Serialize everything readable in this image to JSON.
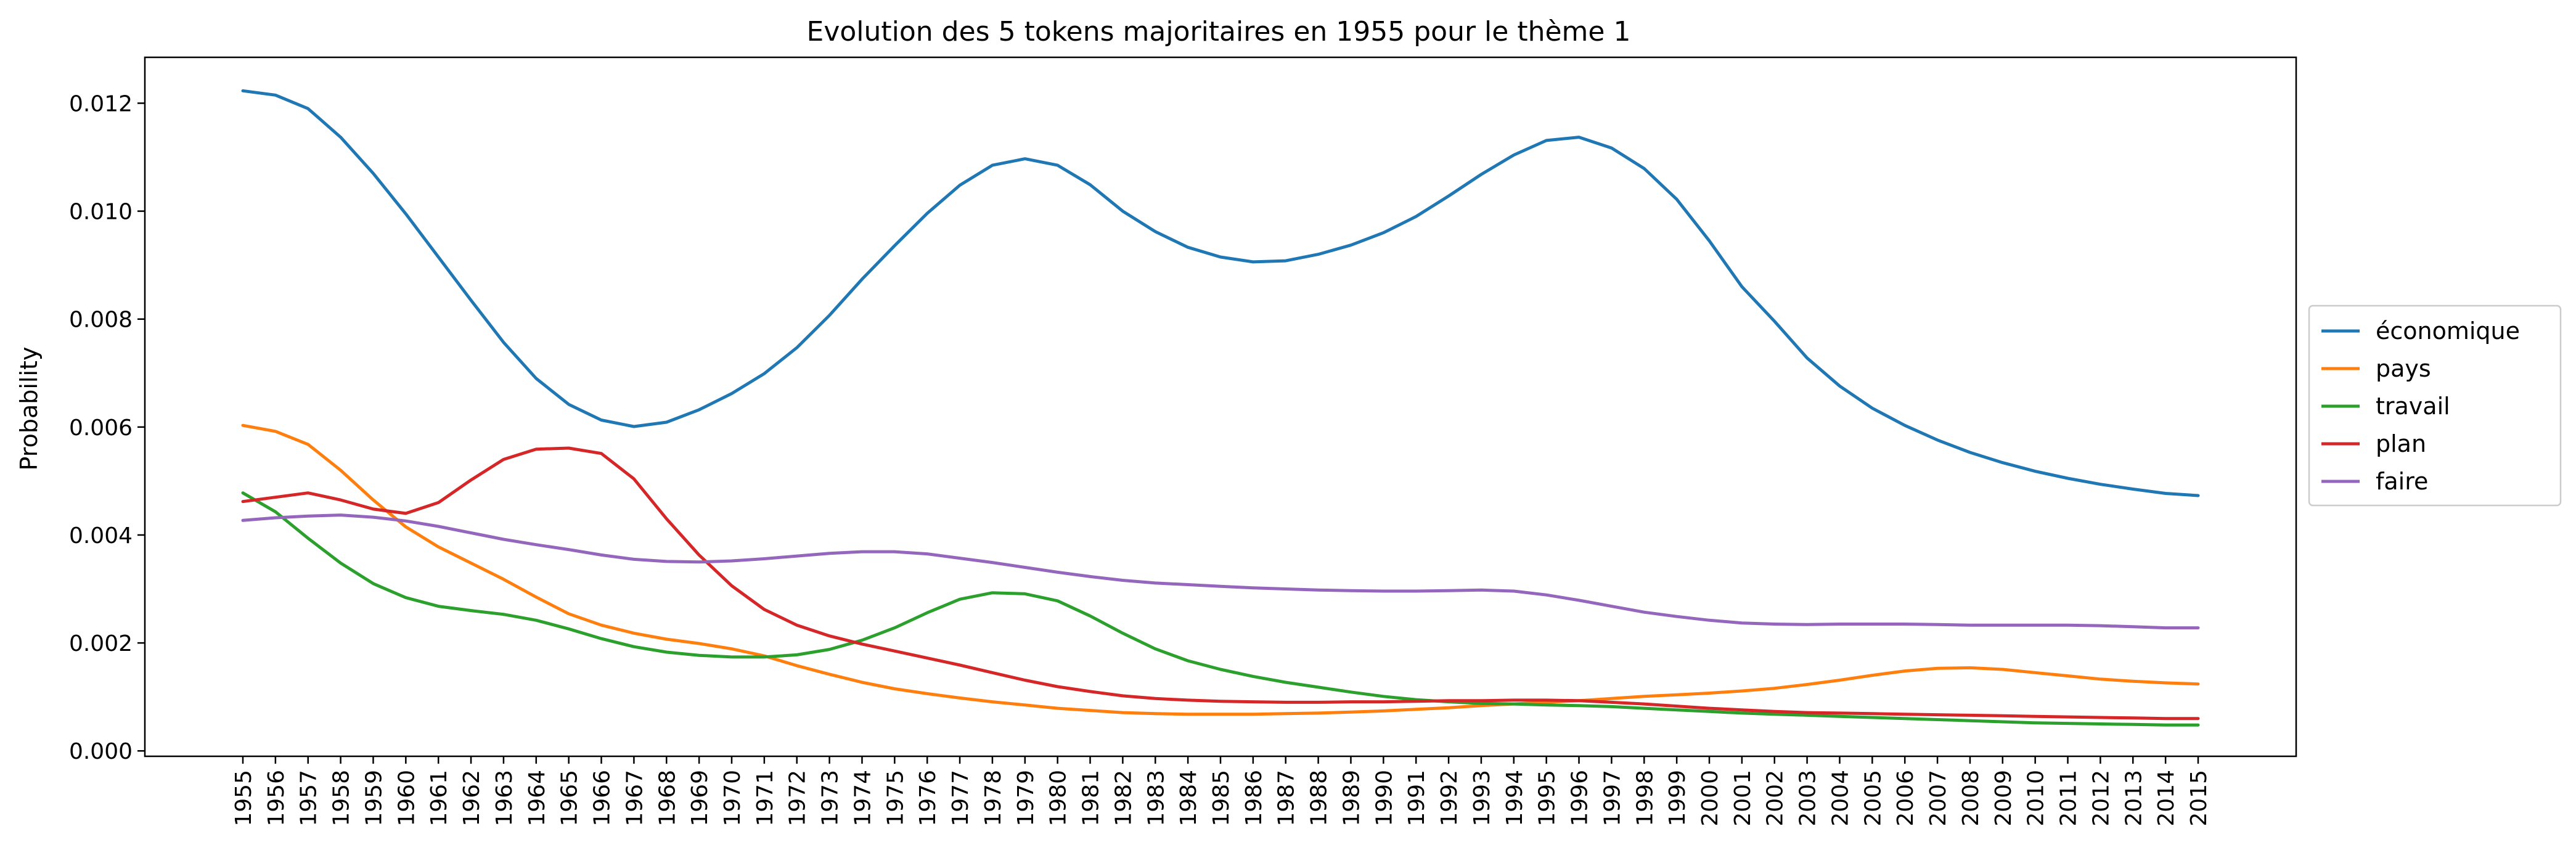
{
  "chart_data": {
    "type": "line",
    "title": "Evolution des 5 tokens majoritaires en 1955 pour le thème 1",
    "xlabel": "",
    "ylabel": "Probability",
    "ylim": [
      -0.0001,
      0.01285
    ],
    "y_ticks": [
      0.0,
      0.002,
      0.004,
      0.006,
      0.008,
      0.01,
      0.012
    ],
    "y_tick_labels": [
      "0.000",
      "0.002",
      "0.004",
      "0.006",
      "0.008",
      "0.010",
      "0.012"
    ],
    "x_labels_rotated": true,
    "grid": false,
    "legend_position": "right",
    "categories": [
      "1955",
      "1956",
      "1957",
      "1958",
      "1959",
      "1960",
      "1961",
      "1962",
      "1963",
      "1964",
      "1965",
      "1966",
      "1967",
      "1968",
      "1969",
      "1970",
      "1971",
      "1972",
      "1973",
      "1974",
      "1975",
      "1976",
      "1977",
      "1978",
      "1979",
      "1980",
      "1981",
      "1982",
      "1983",
      "1984",
      "1985",
      "1986",
      "1987",
      "1988",
      "1989",
      "1990",
      "1991",
      "1992",
      "1993",
      "1994",
      "1995",
      "1996",
      "1997",
      "1998",
      "1999",
      "2000",
      "2001",
      "2002",
      "2003",
      "2004",
      "2005",
      "2006",
      "2007",
      "2008",
      "2009",
      "2010",
      "2011",
      "2012",
      "2013",
      "2014",
      "2015"
    ],
    "series": [
      {
        "name": "économique",
        "color": "#1f77b4",
        "values": [
          0.01223,
          0.01215,
          0.0119,
          0.01137,
          0.0107,
          0.00995,
          0.00915,
          0.00835,
          0.00757,
          0.0069,
          0.00642,
          0.00613,
          0.00601,
          0.00609,
          0.00632,
          0.00662,
          0.00699,
          0.00747,
          0.00807,
          0.00874,
          0.00936,
          0.00996,
          0.01048,
          0.01085,
          0.01097,
          0.01085,
          0.01049,
          0.01,
          0.00962,
          0.00933,
          0.00915,
          0.00906,
          0.00908,
          0.0092,
          0.00937,
          0.0096,
          0.0099,
          0.01028,
          0.01068,
          0.01104,
          0.01131,
          0.01137,
          0.01117,
          0.01079,
          0.01022,
          0.00945,
          0.0086,
          0.00796,
          0.00728,
          0.00676,
          0.00635,
          0.00603,
          0.00576,
          0.00553,
          0.00534,
          0.00518,
          0.00505,
          0.00494,
          0.00485,
          0.00477,
          0.00473
        ]
      },
      {
        "name": "pays",
        "color": "#ff7f0e",
        "values": [
          0.00603,
          0.00592,
          0.00568,
          0.0052,
          0.00465,
          0.00415,
          0.00378,
          0.00348,
          0.00318,
          0.00285,
          0.00254,
          0.00233,
          0.00218,
          0.00207,
          0.00199,
          0.00189,
          0.00176,
          0.00158,
          0.00142,
          0.00127,
          0.00115,
          0.00106,
          0.00098,
          0.00091,
          0.00085,
          0.00079,
          0.00075,
          0.00071,
          0.00069,
          0.00068,
          0.00068,
          0.00068,
          0.00069,
          0.0007,
          0.00072,
          0.00074,
          0.00077,
          0.0008,
          0.00084,
          0.00087,
          0.0009,
          0.00093,
          0.00097,
          0.00101,
          0.00104,
          0.00107,
          0.00111,
          0.00116,
          0.00123,
          0.00131,
          0.0014,
          0.00148,
          0.00153,
          0.00154,
          0.00151,
          0.00145,
          0.00139,
          0.00133,
          0.00129,
          0.00126,
          0.00124
        ]
      },
      {
        "name": "travail",
        "color": "#2ca02c",
        "values": [
          0.00478,
          0.00443,
          0.00394,
          0.00348,
          0.0031,
          0.00284,
          0.00268,
          0.0026,
          0.00253,
          0.00242,
          0.00226,
          0.00208,
          0.00193,
          0.00183,
          0.00177,
          0.00174,
          0.00174,
          0.00178,
          0.00188,
          0.00205,
          0.00228,
          0.00256,
          0.00281,
          0.00293,
          0.00291,
          0.00278,
          0.0025,
          0.00218,
          0.00189,
          0.00167,
          0.00151,
          0.00138,
          0.00127,
          0.00118,
          0.00109,
          0.00101,
          0.00095,
          0.00091,
          0.00088,
          0.00087,
          0.00085,
          0.00084,
          0.00082,
          0.00079,
          0.00076,
          0.00073,
          0.0007,
          0.00068,
          0.00066,
          0.00064,
          0.00062,
          0.0006,
          0.00058,
          0.00056,
          0.00054,
          0.00052,
          0.00051,
          0.0005,
          0.00049,
          0.00048,
          0.00048
        ]
      },
      {
        "name": "plan",
        "color": "#d62728",
        "values": [
          0.00462,
          0.0047,
          0.00478,
          0.00465,
          0.00448,
          0.0044,
          0.0046,
          0.00502,
          0.0054,
          0.00559,
          0.00561,
          0.00551,
          0.00504,
          0.0043,
          0.00363,
          0.00306,
          0.00262,
          0.00233,
          0.00213,
          0.00198,
          0.00185,
          0.00172,
          0.00159,
          0.00145,
          0.00131,
          0.00119,
          0.0011,
          0.00102,
          0.00097,
          0.00094,
          0.00092,
          0.00091,
          0.0009,
          0.0009,
          0.00091,
          0.00091,
          0.00092,
          0.00093,
          0.00093,
          0.00094,
          0.00094,
          0.00093,
          0.0009,
          0.00087,
          0.00083,
          0.00079,
          0.00076,
          0.00073,
          0.00071,
          0.0007,
          0.00069,
          0.00068,
          0.00067,
          0.00066,
          0.00065,
          0.00064,
          0.00063,
          0.00062,
          0.00061,
          0.0006,
          0.0006
        ]
      },
      {
        "name": "faire",
        "color": "#9467bd",
        "values": [
          0.00427,
          0.00432,
          0.00435,
          0.00437,
          0.00433,
          0.00426,
          0.00416,
          0.00404,
          0.00392,
          0.00382,
          0.00373,
          0.00363,
          0.00355,
          0.00351,
          0.0035,
          0.00352,
          0.00356,
          0.00361,
          0.00366,
          0.00369,
          0.00369,
          0.00365,
          0.00357,
          0.00349,
          0.0034,
          0.00331,
          0.00323,
          0.00316,
          0.00311,
          0.00308,
          0.00305,
          0.00302,
          0.003,
          0.00298,
          0.00297,
          0.00296,
          0.00296,
          0.00297,
          0.00298,
          0.00296,
          0.00289,
          0.00279,
          0.00268,
          0.00257,
          0.00249,
          0.00242,
          0.00237,
          0.00235,
          0.00234,
          0.00235,
          0.00235,
          0.00235,
          0.00234,
          0.00233,
          0.00233,
          0.00233,
          0.00233,
          0.00232,
          0.0023,
          0.00228,
          0.00228
        ]
      }
    ]
  }
}
